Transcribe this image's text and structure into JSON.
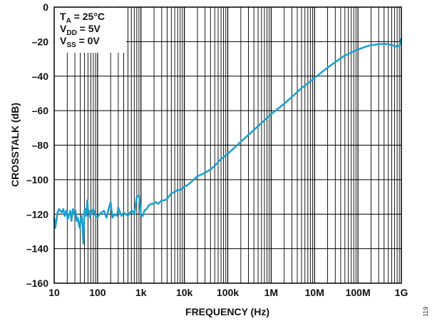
{
  "chart_data": {
    "type": "line",
    "title": "",
    "xlabel": "FREQUENCY (Hz)",
    "ylabel": "CROSSTALK (dB)",
    "x_scale": "log",
    "xlim": [
      10,
      1000000000
    ],
    "ylim": [
      -160,
      0
    ],
    "x_ticks": [
      {
        "value": 10,
        "label": "10"
      },
      {
        "value": 100,
        "label": "100"
      },
      {
        "value": 1000,
        "label": "1k"
      },
      {
        "value": 10000,
        "label": "10k"
      },
      {
        "value": 100000,
        "label": "100k"
      },
      {
        "value": 1000000,
        "label": "1M"
      },
      {
        "value": 10000000,
        "label": "10M"
      },
      {
        "value": 100000000,
        "label": "100M"
      },
      {
        "value": 1000000000,
        "label": "1G"
      }
    ],
    "y_ticks": [
      {
        "value": 0,
        "label": "0"
      },
      {
        "value": -20,
        "label": "–20"
      },
      {
        "value": -40,
        "label": "–40"
      },
      {
        "value": -60,
        "label": "–60"
      },
      {
        "value": -80,
        "label": "–80"
      },
      {
        "value": -100,
        "label": "–100"
      },
      {
        "value": -120,
        "label": "–120"
      },
      {
        "value": -140,
        "label": "–140"
      },
      {
        "value": -160,
        "label": "–160"
      }
    ],
    "grid": true,
    "line_color": "#1a9fd0",
    "conditions": [
      {
        "main": "T",
        "sub": "A",
        "rest": " = 25°C"
      },
      {
        "main": "V",
        "sub": "DD",
        "rest": " = 5V"
      },
      {
        "main": "V",
        "sub": "SS",
        "rest": " = 0V"
      }
    ],
    "figure_id": "119",
    "series": [
      {
        "x": [
          10,
          10.6,
          11.2,
          12,
          12.8,
          14,
          15,
          16.3,
          17.5,
          19,
          20.5,
          22,
          23.5,
          25,
          27,
          29,
          31,
          33,
          35,
          37,
          39,
          41,
          43,
          45,
          47,
          50,
          52,
          55,
          58,
          61,
          64,
          67,
          70,
          75,
          80,
          90,
          100,
          110,
          125,
          140,
          160,
          180,
          200,
          220,
          250,
          280,
          300,
          330,
          360,
          400,
          450,
          500,
          560,
          630,
          700,
          800,
          900,
          1000,
          1100,
          1200,
          1350,
          1500,
          1700,
          1900,
          2200,
          2500,
          3000,
          3500,
          4000,
          5000,
          6000,
          7000,
          8000,
          10000,
          12000,
          15000,
          20000,
          25000,
          30000,
          40000,
          50000,
          70000,
          100000,
          200000,
          500000,
          1000000,
          2000000,
          5000000,
          10000000,
          20000000,
          50000000,
          100000000,
          150000000,
          200000000,
          300000000,
          400000000,
          500000000,
          600000000,
          700000000,
          800000000,
          900000000,
          1000000000
        ],
        "y": [
          -122,
          -128,
          -124,
          -119,
          -117,
          -118,
          -119,
          -117,
          -121,
          -118,
          -123,
          -120,
          -118,
          -124,
          -117,
          -120,
          -118,
          -124,
          -122,
          -126,
          -128,
          -122,
          -121,
          -127,
          -137,
          -118,
          -117,
          -121,
          -112,
          -119,
          -118,
          -122,
          -120,
          -118,
          -117,
          -121,
          -122,
          -120,
          -119,
          -118,
          -122,
          -117,
          -113,
          -122,
          -120,
          -121,
          -116,
          -119,
          -121,
          -119,
          -120,
          -121,
          -119,
          -118,
          -120,
          -110,
          -109,
          -120,
          -121,
          -118,
          -117,
          -115,
          -114,
          -114,
          -113,
          -114,
          -112,
          -112,
          -111,
          -108,
          -107,
          -106,
          -106,
          -104,
          -103,
          -101,
          -98,
          -97,
          -96,
          -94,
          -92,
          -88,
          -85,
          -78,
          -69,
          -62,
          -56,
          -47,
          -41,
          -35,
          -28,
          -24.5,
          -23,
          -22,
          -21.5,
          -21.2,
          -21.5,
          -22,
          -22.5,
          -23,
          -22,
          -18
        ]
      }
    ]
  }
}
